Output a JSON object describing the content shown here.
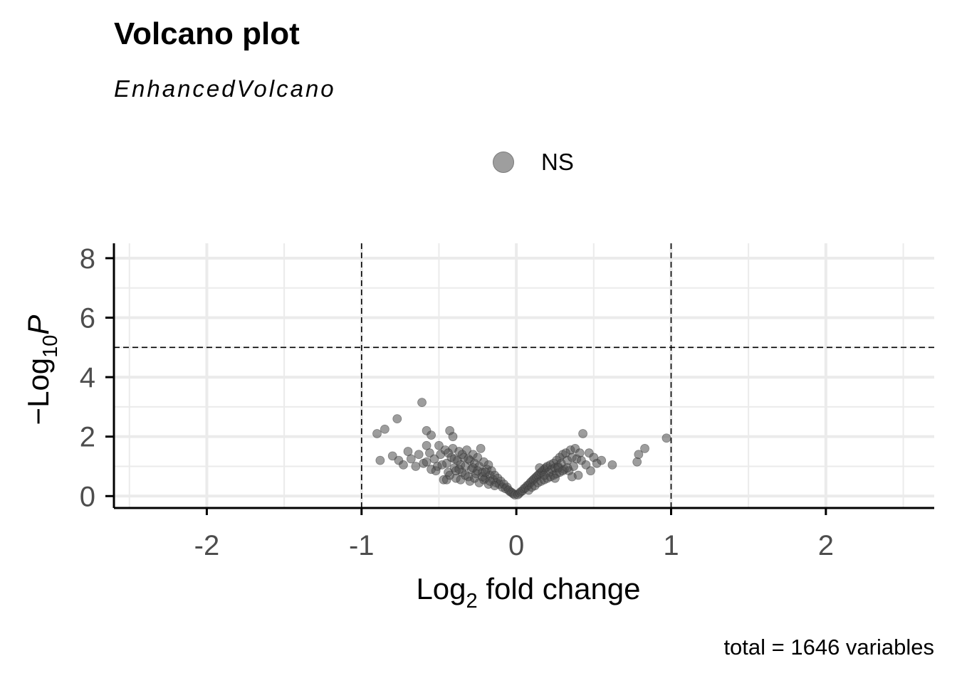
{
  "chart_data": {
    "type": "scatter",
    "title": "Volcano plot",
    "subtitle": "EnhancedVolcano",
    "caption": "total = 1646 variables",
    "xlabel_main": "Log",
    "xlabel_sub": "2",
    "xlabel_rest": " fold change",
    "ylabel_prefix": "−Log",
    "ylabel_sub": "10",
    "ylabel_var": "P",
    "xlim": [
      -2.6,
      2.7
    ],
    "ylim": [
      -0.4,
      8.5
    ],
    "xticks": [
      -2,
      -1,
      0,
      1,
      2
    ],
    "xtick_labels": [
      "-2",
      "-1",
      "0",
      "1",
      "2"
    ],
    "yticks": [
      0,
      2,
      4,
      6,
      8
    ],
    "ytick_labels": [
      "0",
      "2",
      "4",
      "6",
      "8"
    ],
    "fc_cutoff": 1,
    "p_cutoff_neglog10": 5,
    "grid": true,
    "legend_position": "top",
    "series": [
      {
        "name": "NS",
        "color": "#4d4d4d",
        "points": [
          [
            -0.9,
            2.1
          ],
          [
            -0.85,
            2.25
          ],
          [
            -0.77,
            2.6
          ],
          [
            -0.61,
            3.15
          ],
          [
            -0.58,
            2.2
          ],
          [
            -0.55,
            2.05
          ],
          [
            -0.43,
            2.2
          ],
          [
            -0.41,
            2.0
          ],
          [
            -0.88,
            1.2
          ],
          [
            -0.8,
            1.35
          ],
          [
            -0.76,
            1.2
          ],
          [
            -0.73,
            1.05
          ],
          [
            -0.7,
            1.5
          ],
          [
            -0.68,
            1.25
          ],
          [
            -0.65,
            1.0
          ],
          [
            -0.63,
            1.4
          ],
          [
            -0.6,
            1.1
          ],
          [
            -0.58,
            1.7
          ],
          [
            -0.56,
            1.45
          ],
          [
            -0.55,
            0.9
          ],
          [
            -0.53,
            1.25
          ],
          [
            -0.51,
            1.0
          ],
          [
            -0.5,
            1.7
          ],
          [
            -0.49,
            1.4
          ],
          [
            -0.47,
            0.55
          ],
          [
            -0.46,
            1.55
          ],
          [
            -0.45,
            1.1
          ],
          [
            -0.44,
            0.8
          ],
          [
            -0.42,
            1.3
          ],
          [
            -0.41,
            1.6
          ],
          [
            -0.4,
            0.95
          ],
          [
            -0.39,
            0.6
          ],
          [
            -0.38,
            1.2
          ],
          [
            -0.37,
            1.5
          ],
          [
            -0.36,
            1.05
          ],
          [
            -0.35,
            0.8
          ],
          [
            -0.34,
            1.3
          ],
          [
            -0.33,
            1.0
          ],
          [
            -0.32,
            1.55
          ],
          [
            -0.31,
            0.65
          ],
          [
            -0.3,
            1.2
          ],
          [
            -0.29,
            0.9
          ],
          [
            -0.28,
            1.4
          ],
          [
            -0.27,
            1.1
          ],
          [
            -0.26,
            0.75
          ],
          [
            -0.25,
            1.3
          ],
          [
            -0.24,
            1.0
          ],
          [
            -0.23,
            1.6
          ],
          [
            -0.22,
            0.8
          ],
          [
            -0.21,
            1.15
          ],
          [
            -0.2,
            0.6
          ],
          [
            -0.19,
            0.9
          ],
          [
            -0.18,
            1.05
          ],
          [
            -0.17,
            0.7
          ],
          [
            -0.16,
            0.85
          ],
          [
            -0.15,
            0.55
          ],
          [
            -0.14,
            0.7
          ],
          [
            -0.13,
            0.45
          ],
          [
            -0.12,
            0.6
          ],
          [
            -0.11,
            0.4
          ],
          [
            -0.1,
            0.5
          ],
          [
            -0.09,
            0.3
          ],
          [
            -0.08,
            0.4
          ],
          [
            -0.07,
            0.25
          ],
          [
            -0.06,
            0.3
          ],
          [
            -0.05,
            0.2
          ],
          [
            -0.04,
            0.15
          ],
          [
            -0.03,
            0.12
          ],
          [
            -0.02,
            0.08
          ],
          [
            -0.01,
            0.04
          ],
          [
            -0.45,
            0.55
          ],
          [
            -0.43,
            0.7
          ],
          [
            -0.39,
            0.85
          ],
          [
            -0.36,
            0.55
          ],
          [
            -0.33,
            0.7
          ],
          [
            -0.3,
            0.5
          ],
          [
            -0.27,
            0.6
          ],
          [
            -0.24,
            0.45
          ],
          [
            -0.21,
            0.55
          ],
          [
            -0.18,
            0.4
          ],
          [
            -0.35,
            1.4
          ],
          [
            -0.31,
            1.25
          ],
          [
            -0.28,
            0.95
          ],
          [
            -0.25,
            0.85
          ],
          [
            -0.22,
            0.65
          ],
          [
            -0.2,
            0.8
          ],
          [
            -0.17,
            0.5
          ],
          [
            -0.14,
            0.35
          ],
          [
            -0.58,
            1.15
          ],
          [
            -0.52,
            0.85
          ],
          [
            -0.48,
            1.05
          ],
          [
            -0.44,
            1.45
          ],
          [
            -0.4,
            1.25
          ],
          [
            -0.37,
            0.9
          ],
          [
            0.01,
            0.05
          ],
          [
            0.02,
            0.1
          ],
          [
            0.03,
            0.15
          ],
          [
            0.04,
            0.18
          ],
          [
            0.05,
            0.25
          ],
          [
            0.06,
            0.28
          ],
          [
            0.07,
            0.35
          ],
          [
            0.08,
            0.38
          ],
          [
            0.09,
            0.45
          ],
          [
            0.1,
            0.5
          ],
          [
            0.11,
            0.55
          ],
          [
            0.12,
            0.6
          ],
          [
            0.13,
            0.65
          ],
          [
            0.14,
            0.7
          ],
          [
            0.15,
            0.75
          ],
          [
            0.16,
            0.8
          ],
          [
            0.17,
            0.85
          ],
          [
            0.18,
            0.9
          ],
          [
            0.19,
            0.95
          ],
          [
            0.2,
            1.0
          ],
          [
            0.21,
            0.8
          ],
          [
            0.22,
            1.05
          ],
          [
            0.23,
            0.9
          ],
          [
            0.24,
            1.1
          ],
          [
            0.25,
            0.95
          ],
          [
            0.26,
            1.2
          ],
          [
            0.27,
            1.0
          ],
          [
            0.28,
            1.3
          ],
          [
            0.29,
            1.1
          ],
          [
            0.3,
            1.4
          ],
          [
            0.31,
            0.9
          ],
          [
            0.32,
            1.45
          ],
          [
            0.33,
            1.2
          ],
          [
            0.34,
            0.85
          ],
          [
            0.35,
            1.55
          ],
          [
            0.36,
            1.3
          ],
          [
            0.37,
            1.0
          ],
          [
            0.38,
            1.6
          ],
          [
            0.39,
            1.25
          ],
          [
            0.4,
            0.7
          ],
          [
            0.41,
            1.45
          ],
          [
            0.42,
            1.2
          ],
          [
            0.43,
            2.1
          ],
          [
            0.45,
            1.05
          ],
          [
            0.47,
            1.45
          ],
          [
            0.48,
            0.85
          ],
          [
            0.5,
            1.3
          ],
          [
            0.52,
            1.1
          ],
          [
            0.55,
            1.2
          ],
          [
            0.62,
            1.05
          ],
          [
            0.78,
            1.15
          ],
          [
            0.79,
            1.4
          ],
          [
            0.83,
            1.6
          ],
          [
            0.97,
            1.95
          ],
          [
            0.08,
            0.2
          ],
          [
            0.1,
            0.3
          ],
          [
            0.12,
            0.35
          ],
          [
            0.14,
            0.45
          ],
          [
            0.16,
            0.5
          ],
          [
            0.18,
            0.55
          ],
          [
            0.2,
            0.6
          ],
          [
            0.22,
            0.65
          ],
          [
            0.24,
            0.7
          ],
          [
            0.26,
            0.75
          ],
          [
            0.28,
            0.8
          ],
          [
            0.3,
            0.85
          ],
          [
            0.15,
            0.95
          ],
          [
            0.18,
            0.7
          ],
          [
            0.25,
            0.6
          ],
          [
            0.27,
            0.95
          ],
          [
            0.33,
            0.95
          ],
          [
            0.36,
            0.65
          ]
        ]
      }
    ]
  }
}
